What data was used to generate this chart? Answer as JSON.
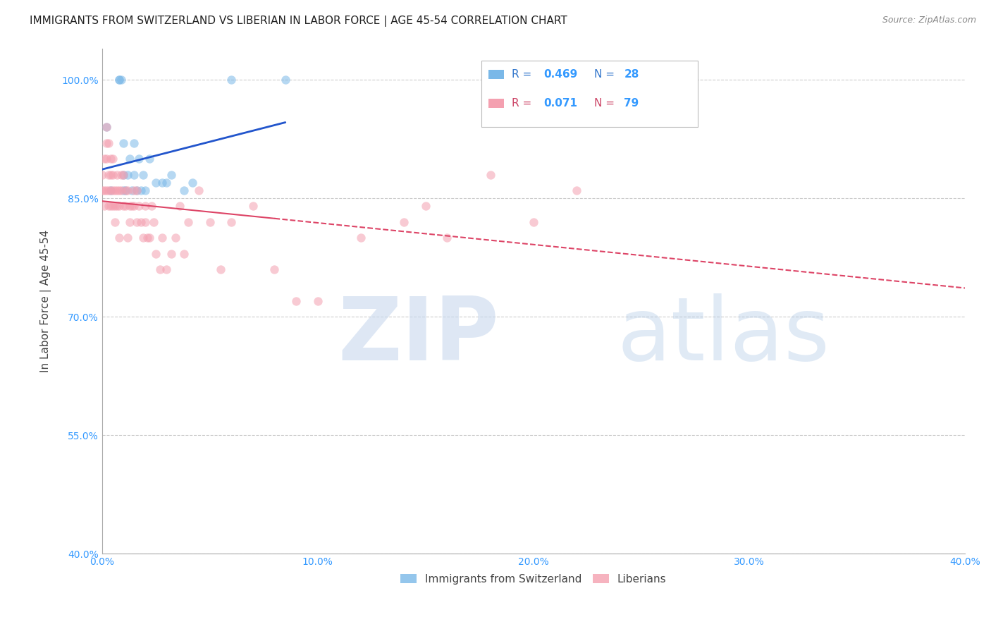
{
  "title": "IMMIGRANTS FROM SWITZERLAND VS LIBERIAN IN LABOR FORCE | AGE 45-54 CORRELATION CHART",
  "source": "Source: ZipAtlas.com",
  "ylabel": "In Labor Force | Age 45-54",
  "xlim": [
    0.0,
    0.4
  ],
  "ylim": [
    0.4,
    1.04
  ],
  "xticks": [
    0.0,
    0.05,
    0.1,
    0.15,
    0.2,
    0.25,
    0.3,
    0.35,
    0.4
  ],
  "yticks": [
    0.4,
    0.55,
    0.7,
    0.85,
    1.0
  ],
  "ytick_labels": [
    "40.0%",
    "55.0%",
    "70.0%",
    "85.0%",
    "100.0%"
  ],
  "background_color": "#ffffff",
  "swiss_color": "#7ab8e8",
  "liberian_color": "#f4a0b0",
  "swiss_line_color": "#2255cc",
  "liberian_line_color": "#dd4466",
  "swiss_scatter_x": [
    0.002,
    0.004,
    0.008,
    0.008,
    0.009,
    0.01,
    0.01,
    0.01,
    0.011,
    0.012,
    0.013,
    0.014,
    0.015,
    0.015,
    0.016,
    0.017,
    0.018,
    0.019,
    0.02,
    0.022,
    0.025,
    0.028,
    0.03,
    0.032,
    0.038,
    0.042,
    0.06,
    0.085
  ],
  "swiss_scatter_y": [
    0.94,
    0.86,
    1.0,
    1.0,
    1.0,
    0.88,
    0.86,
    0.92,
    0.86,
    0.88,
    0.9,
    0.86,
    0.92,
    0.88,
    0.86,
    0.9,
    0.86,
    0.88,
    0.86,
    0.9,
    0.87,
    0.87,
    0.87,
    0.88,
    0.86,
    0.87,
    1.0,
    1.0
  ],
  "liberian_scatter_x": [
    0.0,
    0.0,
    0.001,
    0.001,
    0.001,
    0.002,
    0.002,
    0.002,
    0.002,
    0.003,
    0.003,
    0.003,
    0.003,
    0.004,
    0.004,
    0.004,
    0.004,
    0.005,
    0.005,
    0.005,
    0.005,
    0.006,
    0.006,
    0.006,
    0.007,
    0.007,
    0.007,
    0.008,
    0.008,
    0.008,
    0.009,
    0.009,
    0.01,
    0.01,
    0.011,
    0.011,
    0.012,
    0.012,
    0.013,
    0.013,
    0.014,
    0.015,
    0.015,
    0.016,
    0.016,
    0.017,
    0.018,
    0.019,
    0.02,
    0.02,
    0.021,
    0.022,
    0.023,
    0.024,
    0.025,
    0.027,
    0.028,
    0.03,
    0.032,
    0.034,
    0.036,
    0.038,
    0.04,
    0.045,
    0.05,
    0.055,
    0.06,
    0.07,
    0.08,
    0.09,
    0.1,
    0.12,
    0.14,
    0.15,
    0.16,
    0.18,
    0.2,
    0.22
  ],
  "liberian_scatter_y": [
    0.86,
    0.88,
    0.9,
    0.86,
    0.84,
    0.94,
    0.92,
    0.9,
    0.86,
    0.88,
    0.86,
    0.84,
    0.92,
    0.88,
    0.86,
    0.84,
    0.9,
    0.9,
    0.86,
    0.84,
    0.88,
    0.86,
    0.84,
    0.82,
    0.88,
    0.86,
    0.84,
    0.86,
    0.84,
    0.8,
    0.88,
    0.86,
    0.84,
    0.88,
    0.84,
    0.86,
    0.8,
    0.86,
    0.84,
    0.82,
    0.84,
    0.86,
    0.84,
    0.86,
    0.82,
    0.84,
    0.82,
    0.8,
    0.84,
    0.82,
    0.8,
    0.8,
    0.84,
    0.82,
    0.78,
    0.76,
    0.8,
    0.76,
    0.78,
    0.8,
    0.84,
    0.78,
    0.82,
    0.86,
    0.82,
    0.76,
    0.82,
    0.84,
    0.76,
    0.72,
    0.72,
    0.8,
    0.82,
    0.84,
    0.8,
    0.88,
    0.82,
    0.86
  ],
  "grid_color": "#cccccc",
  "title_fontsize": 11,
  "axis_label_fontsize": 11,
  "tick_fontsize": 10,
  "scatter_size": 80,
  "scatter_alpha": 0.55
}
